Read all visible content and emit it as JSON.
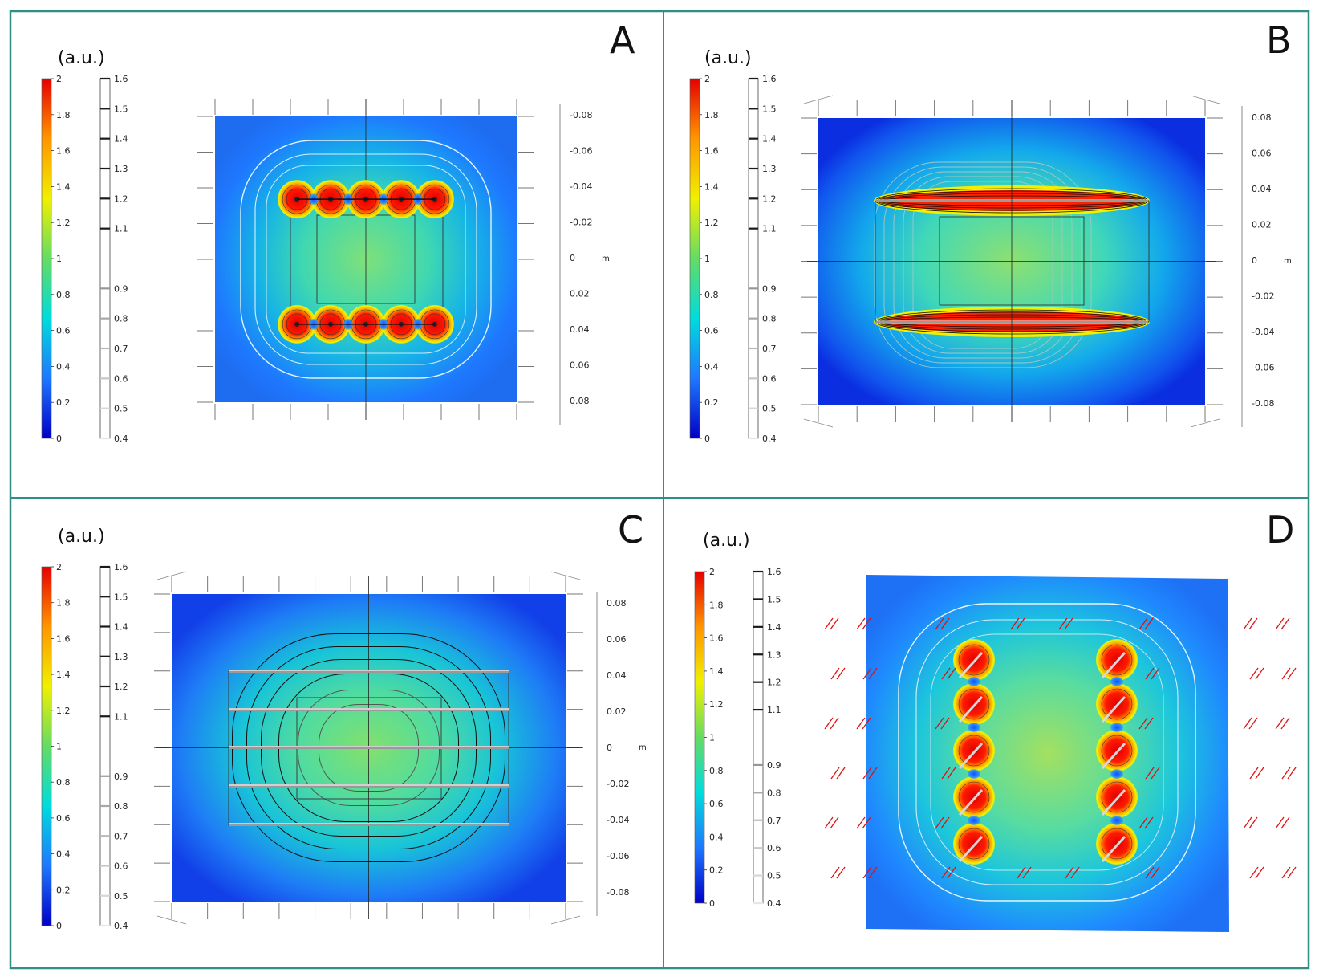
{
  "figure": {
    "frame_color": "#2f8f87",
    "panels": [
      {
        "id": "A",
        "letter": "A",
        "units": "(a.u.)",
        "view": "axial"
      },
      {
        "id": "B",
        "letter": "B",
        "units": "(a.u.)",
        "view": "axial"
      },
      {
        "id": "C",
        "letter": "C",
        "units": "(a.u.)",
        "view": "axial"
      },
      {
        "id": "D",
        "letter": "D",
        "units": "(a.u.)",
        "view": "oblique"
      }
    ]
  },
  "chart_data": [
    {
      "type": "heatmap",
      "panel": "A",
      "title": "",
      "units": "(a.u.)",
      "colorbar": {
        "min": 0,
        "max": 2,
        "ticks": [
          "0",
          "0.2",
          "0.4",
          "0.6",
          "0.8",
          "1",
          "1.2",
          "1.4",
          "1.6",
          "1.8",
          "2"
        ],
        "colors": [
          "#0000c8",
          "#1e78ff",
          "#00dcdc",
          "#64dc64",
          "#f0f000",
          "#ff9600",
          "#e60000"
        ]
      },
      "contour_legend": {
        "min": 0.4,
        "max": 1.6,
        "ticks": [
          "0.4",
          "0.5",
          "0.6",
          "0.7",
          "0.8",
          "0.9",
          "1.1",
          "1.2",
          "1.3",
          "1.4",
          "1.5",
          "1.6"
        ]
      },
      "y_axis": {
        "label": "m",
        "range": [
          -0.08,
          0.08
        ],
        "ticks": [
          "-0.08",
          "-0.06",
          "-0.04",
          "-0.02",
          "0",
          "0.02",
          "0.04",
          "0.06",
          "0.08"
        ]
      },
      "coil": {
        "type": "loop_pairs",
        "wires_per_side": 5,
        "separation_m": 0.08
      },
      "hotspots": [
        [
          -0.043,
          -0.035
        ],
        [
          -0.022,
          -0.035
        ],
        [
          0.0,
          -0.035
        ],
        [
          0.022,
          -0.035
        ],
        [
          0.043,
          -0.035
        ],
        [
          -0.043,
          0.035
        ],
        [
          -0.022,
          0.035
        ],
        [
          0.0,
          0.035
        ],
        [
          0.022,
          0.035
        ],
        [
          0.043,
          0.035
        ]
      ]
    },
    {
      "type": "heatmap",
      "panel": "B",
      "title": "",
      "units": "(a.u.)",
      "colorbar": {
        "min": 0,
        "max": 2,
        "ticks": [
          "0",
          "0.2",
          "0.4",
          "0.6",
          "0.8",
          "1",
          "1.2",
          "1.4",
          "1.6",
          "1.8",
          "2"
        ],
        "colors": [
          "#0000c8",
          "#1e78ff",
          "#00dcdc",
          "#64dc64",
          "#f0f000",
          "#ff9600",
          "#e60000"
        ]
      },
      "contour_legend": {
        "min": 0.4,
        "max": 1.6,
        "ticks": [
          "0.4",
          "0.5",
          "0.6",
          "0.7",
          "0.8",
          "0.9",
          "1.1",
          "1.2",
          "1.3",
          "1.4",
          "1.5",
          "1.6"
        ]
      },
      "y_axis": {
        "label": "m",
        "range": [
          -0.08,
          0.08
        ],
        "ticks": [
          "0.08",
          "0.06",
          "0.04",
          "0.02",
          "0",
          "-0.02",
          "-0.04",
          "-0.06",
          "-0.08"
        ]
      },
      "coil": {
        "type": "sheet_pairs",
        "separation_m": 0.07
      }
    },
    {
      "type": "heatmap",
      "panel": "C",
      "title": "",
      "units": "(a.u.)",
      "colorbar": {
        "min": 0,
        "max": 2,
        "ticks": [
          "0",
          "0.2",
          "0.4",
          "0.6",
          "0.8",
          "1",
          "1.2",
          "1.4",
          "1.6",
          "1.8",
          "2"
        ],
        "colors": [
          "#0000c8",
          "#1e78ff",
          "#00dcdc",
          "#64dc64",
          "#f0f000",
          "#ff9600",
          "#e60000"
        ]
      },
      "contour_legend": {
        "min": 0.4,
        "max": 1.6,
        "ticks": [
          "0.4",
          "0.5",
          "0.6",
          "0.7",
          "0.8",
          "0.9",
          "1.1",
          "1.2",
          "1.3",
          "1.4",
          "1.5",
          "1.6"
        ]
      },
      "y_axis": {
        "label": "m",
        "range": [
          -0.08,
          0.08
        ],
        "ticks": [
          "0.08",
          "0.06",
          "0.04",
          "0.02",
          "0",
          "-0.02",
          "-0.04",
          "-0.06",
          "-0.08"
        ]
      },
      "coil": {
        "type": "wire_array",
        "wires": 5
      }
    },
    {
      "type": "heatmap",
      "panel": "D",
      "title": "",
      "units": "(a.u.)",
      "colorbar": {
        "min": 0,
        "max": 2,
        "ticks": [
          "0",
          "0.2",
          "0.4",
          "0.6",
          "0.8",
          "1",
          "1.2",
          "1.4",
          "1.6",
          "1.8",
          "2"
        ],
        "colors": [
          "#0000c8",
          "#1e78ff",
          "#00dcdc",
          "#64dc64",
          "#f0f000",
          "#ff9600",
          "#e60000"
        ]
      },
      "contour_legend": {
        "min": 0.4,
        "max": 1.6,
        "ticks": [
          "0.4",
          "0.5",
          "0.6",
          "0.7",
          "0.8",
          "0.9",
          "1.1",
          "1.2",
          "1.3",
          "1.4",
          "1.5",
          "1.6"
        ]
      },
      "coil": {
        "type": "loop_pairs_oblique",
        "wires_per_side": 5
      },
      "arrows": "field direction (red)"
    }
  ]
}
